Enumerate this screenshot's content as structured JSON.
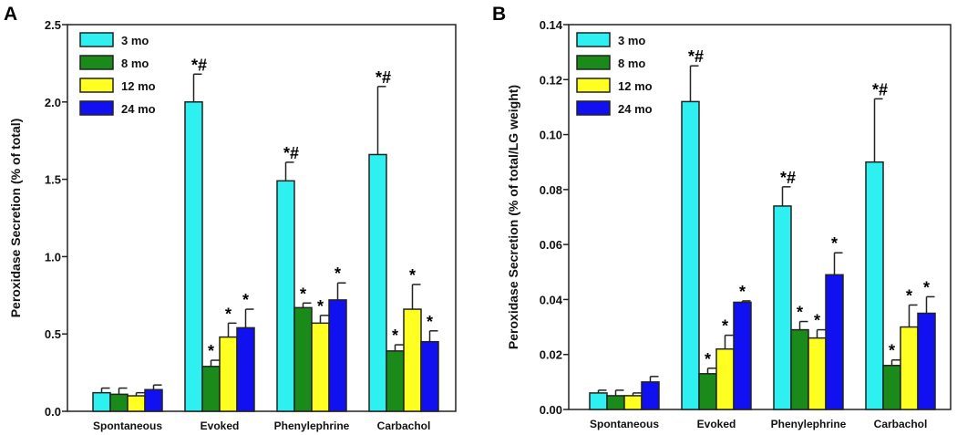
{
  "chart_data": [
    {
      "type": "bar",
      "panel_label": "A",
      "title": "",
      "xlabel": "",
      "ylabel": "Peroxidase Secretion (% of total)",
      "ylim": [
        0,
        2.5
      ],
      "yticks": [
        "0.0",
        "0.5",
        "1.0",
        "1.5",
        "2.0",
        "2.5"
      ],
      "ytick_values": [
        0,
        0.5,
        1.0,
        1.5,
        2.0,
        2.5
      ],
      "categories": [
        "Spontaneous",
        "Evoked",
        "Phenylephrine",
        "Carbachol"
      ],
      "legend_position": "top-left",
      "series": [
        {
          "name": "3 mo",
          "color": "#2ef0f0",
          "values": [
            0.12,
            2.0,
            1.49,
            1.66
          ],
          "errors": [
            0.03,
            0.18,
            0.12,
            0.44
          ],
          "annotations": [
            "",
            "*#",
            "*#",
            "*#"
          ]
        },
        {
          "name": "8 mo",
          "color": "#1a8a1a",
          "values": [
            0.11,
            0.29,
            0.67,
            0.39
          ],
          "errors": [
            0.04,
            0.04,
            0.03,
            0.04
          ],
          "annotations": [
            "",
            "*",
            "*",
            "*"
          ]
        },
        {
          "name": "12 mo",
          "color": "#ffff22",
          "values": [
            0.1,
            0.48,
            0.57,
            0.66
          ],
          "errors": [
            0.02,
            0.09,
            0.05,
            0.16
          ],
          "annotations": [
            "",
            "*",
            "*",
            "*"
          ]
        },
        {
          "name": "24 mo",
          "color": "#1010f0",
          "values": [
            0.14,
            0.54,
            0.72,
            0.45
          ],
          "errors": [
            0.03,
            0.12,
            0.11,
            0.07
          ],
          "annotations": [
            "",
            "*",
            "*",
            "*"
          ]
        }
      ]
    },
    {
      "type": "bar",
      "panel_label": "B",
      "title": "",
      "xlabel": "",
      "ylabel": "Peroxidase Secretion (% of total/LG weight)",
      "ylim": [
        0,
        0.14
      ],
      "yticks": [
        "0.00",
        "0.02",
        "0.04",
        "0.06",
        "0.08",
        "0.10",
        "0.12",
        "0.14"
      ],
      "ytick_values": [
        0,
        0.02,
        0.04,
        0.06,
        0.08,
        0.1,
        0.12,
        0.14
      ],
      "categories": [
        "Spontaneous",
        "Evoked",
        "Phenylephrine",
        "Carbachol"
      ],
      "legend_position": "top-left",
      "series": [
        {
          "name": "3 mo",
          "color": "#2ef0f0",
          "values": [
            0.006,
            0.112,
            0.074,
            0.09
          ],
          "errors": [
            0.001,
            0.013,
            0.007,
            0.023
          ],
          "annotations": [
            "",
            "*#",
            "*#",
            "*#"
          ]
        },
        {
          "name": "8 mo",
          "color": "#1a8a1a",
          "values": [
            0.005,
            0.013,
            0.029,
            0.016
          ],
          "errors": [
            0.002,
            0.002,
            0.003,
            0.002
          ],
          "annotations": [
            "",
            "*",
            "*",
            "*"
          ]
        },
        {
          "name": "12 mo",
          "color": "#ffff22",
          "values": [
            0.005,
            0.022,
            0.026,
            0.03
          ],
          "errors": [
            0.001,
            0.005,
            0.003,
            0.008
          ],
          "annotations": [
            "",
            "*",
            "*",
            "*"
          ]
        },
        {
          "name": "24 mo",
          "color": "#1010f0",
          "values": [
            0.01,
            0.039,
            0.049,
            0.035
          ],
          "errors": [
            0.002,
            0.0005,
            0.008,
            0.006
          ],
          "annotations": [
            "",
            "*",
            "*",
            "*"
          ]
        }
      ]
    }
  ]
}
